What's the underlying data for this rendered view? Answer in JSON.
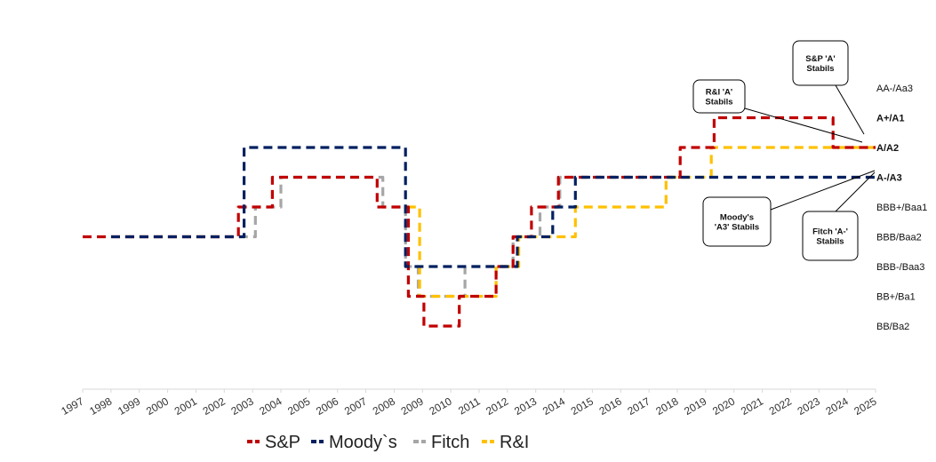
{
  "chart_data": {
    "type": "line",
    "step": true,
    "x_range": [
      1997,
      2025
    ],
    "x_ticks": [
      "1997",
      "1998",
      "1999",
      "2000",
      "2001",
      "2002",
      "2003",
      "2004",
      "2005",
      "2006",
      "2007",
      "2008",
      "2009",
      "2010",
      "2011",
      "2012",
      "2013",
      "2014",
      "2015",
      "2016",
      "2017",
      "2018",
      "2019",
      "2020",
      "2021",
      "2022",
      "2023",
      "2024",
      "2025"
    ],
    "rating_levels": [
      {
        "label": "AA-/Aa3",
        "level": 8,
        "bold": false
      },
      {
        "label": "A+/A1",
        "level": 7,
        "bold": true
      },
      {
        "label": "A/A2",
        "level": 6,
        "bold": true
      },
      {
        "label": "A-/A3",
        "level": 5,
        "bold": true
      },
      {
        "label": "BBB+/Baa1",
        "level": 4,
        "bold": false
      },
      {
        "label": "BBB/Baa2",
        "level": 3,
        "bold": false
      },
      {
        "label": "BBB-/Baa3",
        "level": 2,
        "bold": false
      },
      {
        "label": "BB+/Ba1",
        "level": 1,
        "bold": false
      },
      {
        "label": "BB/Ba2",
        "level": 0,
        "bold": false
      }
    ],
    "series": [
      {
        "name": "S&P",
        "color": "#c00000",
        "points": [
          [
            1997,
            3
          ],
          [
            2002.5,
            3
          ],
          [
            2002.5,
            4
          ],
          [
            2003.7,
            4
          ],
          [
            2003.7,
            5
          ],
          [
            2007.4,
            5
          ],
          [
            2007.4,
            4
          ],
          [
            2008.5,
            4
          ],
          [
            2008.5,
            1
          ],
          [
            2009.05,
            1
          ],
          [
            2009.05,
            0
          ],
          [
            2010.3,
            0
          ],
          [
            2010.3,
            1
          ],
          [
            2011.6,
            1
          ],
          [
            2011.6,
            2
          ],
          [
            2012.2,
            2
          ],
          [
            2012.2,
            3
          ],
          [
            2012.85,
            3
          ],
          [
            2012.85,
            4
          ],
          [
            2013.8,
            4
          ],
          [
            2013.8,
            5
          ],
          [
            2018.1,
            5
          ],
          [
            2018.1,
            6
          ],
          [
            2019.3,
            6
          ],
          [
            2019.3,
            7
          ],
          [
            2023.5,
            7
          ],
          [
            2023.5,
            6
          ],
          [
            2025,
            6
          ]
        ]
      },
      {
        "name": "Moody`s",
        "color": "#002060",
        "points": [
          [
            1998,
            3
          ],
          [
            2002.7,
            3
          ],
          [
            2002.7,
            6
          ],
          [
            2008.4,
            6
          ],
          [
            2008.4,
            2
          ],
          [
            2012.35,
            2
          ],
          [
            2012.35,
            3
          ],
          [
            2013.6,
            3
          ],
          [
            2013.6,
            4
          ],
          [
            2014.4,
            4
          ],
          [
            2014.4,
            5
          ],
          [
            2025,
            5
          ]
        ]
      },
      {
        "name": "Fitch",
        "color": "#a6a6a6",
        "points": [
          [
            1998.5,
            3
          ],
          [
            2003.1,
            3
          ],
          [
            2003.1,
            4
          ],
          [
            2004.0,
            4
          ],
          [
            2004.0,
            5
          ],
          [
            2007.6,
            5
          ],
          [
            2007.6,
            4
          ],
          [
            2008.4,
            4
          ],
          [
            2008.4,
            2
          ],
          [
            2008.85,
            2
          ],
          [
            2008.85,
            1
          ],
          [
            2010.5,
            1
          ],
          [
            2010.5,
            2
          ],
          [
            2012.2,
            2
          ],
          [
            2012.2,
            3
          ],
          [
            2013.15,
            3
          ],
          [
            2013.15,
            4
          ],
          [
            2013.85,
            4
          ],
          [
            2013.85,
            5
          ],
          [
            2025,
            5
          ]
        ]
      },
      {
        "name": "R&I",
        "color": "#ffc000",
        "points": [
          [
            2008.45,
            4
          ],
          [
            2008.9,
            4
          ],
          [
            2008.9,
            1
          ],
          [
            2011.6,
            1
          ],
          [
            2011.6,
            2
          ],
          [
            2012.4,
            2
          ],
          [
            2012.4,
            3
          ],
          [
            2014.4,
            3
          ],
          [
            2014.4,
            4
          ],
          [
            2017.6,
            4
          ],
          [
            2017.6,
            5
          ],
          [
            2019.2,
            5
          ],
          [
            2019.2,
            6
          ],
          [
            2025,
            6
          ]
        ]
      }
    ],
    "annotations": [
      {
        "lines": [
          "S&P  'A'",
          "Stabils"
        ]
      },
      {
        "lines": [
          "R&I  'A'",
          "Stabils"
        ]
      },
      {
        "lines": [
          "Moody's",
          "'A3' Stabils"
        ]
      },
      {
        "lines": [
          "Fitch  'A-'",
          "Stabils"
        ]
      }
    ],
    "legend": {
      "position": "bottom-center",
      "items": [
        "S&P",
        "Moody`s",
        "Fitch",
        "R&I"
      ]
    },
    "grid": false
  }
}
